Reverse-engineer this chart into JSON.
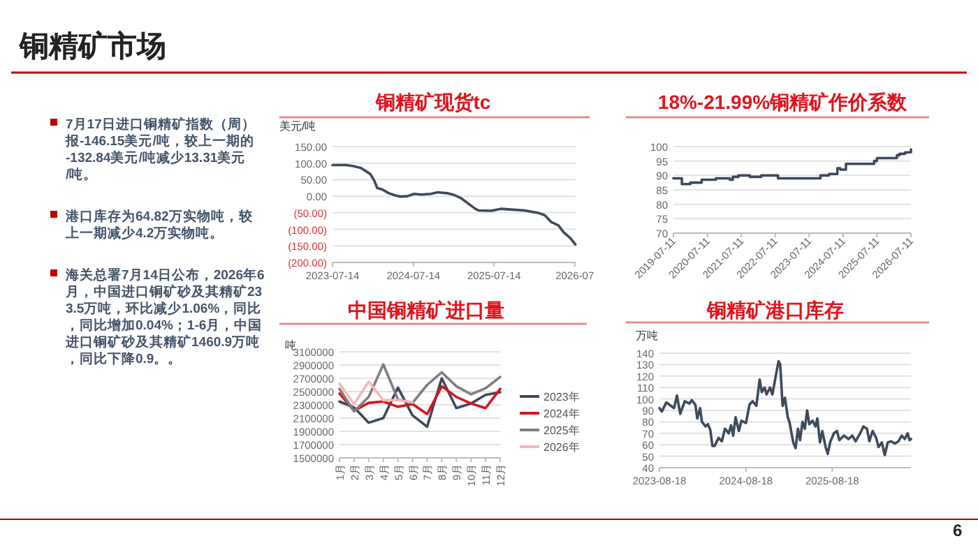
{
  "chart_data": [
    {
      "type": "other",
      "title": "铜精矿市场",
      "annotations": [
        "7月17日进口铜精矿指数（周）报-146.15美元/吨，较上一期的-132.84美元/吨减少13.31美元/吨。",
        "港口库存为64.82万实物吨，较上一期减少4.2万实物吨。",
        "海关总署7月14日公布，2026年6月，中国进口铜矿砂及其精矿233.5万吨，环比减少1.06%，同比，同比增加0.04%；1-6月，中国进口铜矿砂及其精矿1460.9万吨，同比下降0.9。。",
        "6"
      ]
    },
    {
      "type": "line",
      "title": "铜精矿现货tc",
      "ylabel": "美元/吨",
      "grid": "y",
      "xlim": [
        "2023-07-14",
        "2026-07-18"
      ],
      "xticks": [
        {
          "value": "2023-07-14",
          "label": "2023-07-14"
        },
        {
          "value": "2024-07-14",
          "label": "2024-07-14"
        },
        {
          "value": "2025-07-14",
          "label": "2025-07-14"
        },
        {
          "value": "2026-07-14",
          "label": "2026-07"
        }
      ],
      "ylim": [
        -200,
        150
      ],
      "yticks": [
        {
          "value": 150,
          "label": "150.00"
        },
        {
          "value": 100,
          "label": "100.00"
        },
        {
          "value": 50,
          "label": "50.00"
        },
        {
          "value": 0,
          "label": "0.00"
        },
        {
          "value": -50,
          "label": "(50.00)"
        },
        {
          "value": -100,
          "label": "(100.00)"
        },
        {
          "value": -150,
          "label": "(150.00)"
        },
        {
          "value": -200,
          "label": "(200.00)"
        }
      ],
      "series": [
        {
          "color": "#3c4a5c",
          "x": [
            "2023-07-14",
            "2023-09-14",
            "2023-10-17",
            "2023-11-20",
            "2024-01-01",
            "2024-01-20",
            "2024-02-01",
            "2024-02-22",
            "2024-03-25",
            "2024-04-26",
            "2024-05-17",
            "2024-06-17",
            "2024-07-17",
            "2024-08-20",
            "2024-10-01",
            "2024-11-01",
            "2024-12-14",
            "2025-01-14",
            "2025-02-17",
            "2025-03-17",
            "2025-04-20",
            "2025-05-05",
            "2025-07-01",
            "2025-08-14",
            "2025-09-25",
            "2025-11-28",
            "2026-01-28",
            "2026-02-28",
            "2026-03-30",
            "2026-05-01",
            "2026-05-25",
            "2026-06-25",
            "2026-07-17"
          ],
          "values": [
            94,
            94,
            91,
            85,
            67,
            46,
            25,
            21,
            9,
            2,
            -1,
            0,
            7,
            5,
            7,
            12,
            9,
            4,
            -7,
            -21,
            -38,
            -43,
            -44,
            -38,
            -40,
            -43,
            -50,
            -57,
            -78,
            -88,
            -109,
            -127,
            -146
          ]
        }
      ]
    },
    {
      "type": "step",
      "title": "18%-21.99%铜精矿作价系数",
      "grid": "y",
      "xlim": [
        "2019-07-11",
        "2026-07-11"
      ],
      "xticks": [
        {
          "value": "2019-07-11",
          "label": "2019-07-11"
        },
        {
          "value": "2020-07-11",
          "label": "2020-07-11"
        },
        {
          "value": "2021-07-11",
          "label": "2021-07-11"
        },
        {
          "value": "2022-07-11",
          "label": "2022-07-11"
        },
        {
          "value": "2023-07-11",
          "label": "2023-07-11"
        },
        {
          "value": "2024-07-11",
          "label": "2024-07-11"
        },
        {
          "value": "2025-07-11",
          "label": "2025-07-11"
        },
        {
          "value": "2026-07-11",
          "label": "2026-07-11"
        }
      ],
      "ylim": [
        70,
        100
      ],
      "yticks": [
        70,
        75,
        80,
        85,
        90,
        95,
        100
      ],
      "series": [
        {
          "color": "#3c4a5c",
          "x": [
            "2019-07-11",
            "2019-09-10",
            "2019-10-10",
            "2020-01-10",
            "2020-05-10",
            "2020-10-10",
            "2021-03-10",
            "2021-04-10",
            "2021-06-10",
            "2021-10-10",
            "2022-02-10",
            "2022-08-10",
            "2023-11-10",
            "2024-02-10",
            "2024-05-10",
            "2024-06-10",
            "2024-08-10",
            "2025-06-10",
            "2025-07-10",
            "2026-02-10",
            "2026-03-10",
            "2026-05-10",
            "2026-07-11"
          ],
          "values": [
            89,
            89,
            87,
            87.5,
            88.5,
            89,
            88.5,
            89.5,
            90,
            89.5,
            90,
            89,
            90,
            90.5,
            92.5,
            92,
            94,
            95,
            96,
            97,
            97.5,
            98,
            99
          ]
        }
      ]
    },
    {
      "type": "line",
      "title": "中国铜精矿进口量",
      "ylabel": "吨",
      "grid": "y",
      "legend": "right",
      "categories": [
        "1月",
        "2月",
        "3月",
        "4月",
        "5月",
        "6月",
        "7月",
        "8月",
        "9月",
        "10月",
        "11月",
        "12月"
      ],
      "ylim": [
        1500000,
        3100000
      ],
      "yticks": [
        1500000,
        1700000,
        1900000,
        2100000,
        2300000,
        2500000,
        2700000,
        2900000,
        3100000
      ],
      "series": [
        {
          "name": "2023年",
          "color": "#3b4a5e",
          "values": [
            2350000,
            2260000,
            2030000,
            2100000,
            2560000,
            2140000,
            1970000,
            2700000,
            2250000,
            2320000,
            2450000,
            2490000
          ]
        },
        {
          "name": "2024年",
          "color": "#d7141d",
          "values": [
            2470000,
            2210000,
            2330000,
            2350000,
            2270000,
            2310000,
            2160000,
            2580000,
            2420000,
            2320000,
            2250000,
            2540000
          ]
        },
        {
          "name": "2025年",
          "color": "#7f7f7f",
          "values": [
            2540000,
            2200000,
            2420000,
            2910000,
            2380000,
            2330000,
            2600000,
            2790000,
            2580000,
            2460000,
            2550000,
            2720000
          ]
        },
        {
          "name": "2026年",
          "color": "#f6b8b8",
          "values": [
            2620000,
            2310000,
            2650000,
            2370000,
            2370000,
            2340000,
            null,
            null,
            null,
            null,
            null,
            null
          ]
        }
      ]
    },
    {
      "type": "line",
      "title": "铜精矿港口库存",
      "ylabel": "万吨",
      "grid": "y",
      "xlim": [
        "2023-08-18",
        "2026-07-17"
      ],
      "xticks": [
        {
          "value": "2023-08-18",
          "label": "2023-08-18"
        },
        {
          "value": "2024-08-18",
          "label": "2024-08-18"
        },
        {
          "value": "2025-08-18",
          "label": "2025-08-18"
        }
      ],
      "ylim": [
        40,
        140
      ],
      "yticks": [
        40,
        50,
        60,
        70,
        80,
        90,
        100,
        110,
        120,
        130,
        140
      ],
      "series": [
        {
          "color": "#3c4a5c",
          "x": [
            "2023-08-18",
            "2023-08-28",
            "2023-09-16",
            "2023-10-06",
            "2023-10-19",
            "2023-10-31",
            "2023-11-14",
            "2023-12-03",
            "2023-12-23",
            "2024-01-02",
            "2024-01-17",
            "2024-01-25",
            "2024-02-06",
            "2024-02-14",
            "2024-02-29",
            "2024-03-10",
            "2024-03-20",
            "2024-03-29",
            "2024-04-08",
            "2024-04-24",
            "2024-05-08",
            "2024-05-21",
            "2024-06-06",
            "2024-06-16",
            "2024-06-25",
            "2024-07-05",
            "2024-07-19",
            "2024-07-30",
            "2024-08-18",
            "2024-09-02",
            "2024-09-15",
            "2024-10-01",
            "2024-10-15",
            "2024-10-24",
            "2024-11-05",
            "2024-11-13",
            "2024-11-28",
            "2024-12-08",
            "2024-12-22",
            "2025-01-03",
            "2025-01-10",
            "2025-01-20",
            "2025-01-30",
            "2025-02-11",
            "2025-02-18",
            "2025-03-06",
            "2025-03-16",
            "2025-03-26",
            "2025-04-04",
            "2025-04-14",
            "2025-04-24",
            "2025-05-04",
            "2025-05-13",
            "2025-05-27",
            "2025-06-08",
            "2025-06-16",
            "2025-06-27",
            "2025-07-07",
            "2025-07-21",
            "2025-07-30",
            "2025-08-09",
            "2025-08-25",
            "2025-09-07",
            "2025-09-17",
            "2025-10-07",
            "2025-10-26",
            "2025-11-11",
            "2025-11-25",
            "2025-12-14",
            "2025-12-28",
            "2026-01-12",
            "2026-01-22",
            "2026-02-05",
            "2026-02-20",
            "2026-03-02",
            "2026-03-16",
            "2026-03-28",
            "2026-04-10",
            "2026-04-24",
            "2026-05-10",
            "2026-05-25",
            "2026-06-08",
            "2026-06-21",
            "2026-07-03",
            "2026-07-11",
            "2026-07-17"
          ],
          "values": [
            92,
            89,
            97,
            94,
            92,
            103,
            87,
            98,
            96,
            99,
            95,
            83,
            92,
            80,
            76,
            78,
            73,
            59,
            59,
            66,
            63,
            74,
            70,
            77,
            68,
            84,
            72,
            81,
            79,
            95,
            98,
            94,
            117,
            106,
            110,
            104,
            110,
            104,
            120,
            133,
            130,
            94,
            101,
            84,
            80,
            62,
            57,
            74,
            64,
            80,
            74,
            90,
            78,
            81,
            76,
            83,
            62,
            72,
            58,
            52,
            62,
            70,
            72,
            64,
            68,
            65,
            68,
            63,
            70,
            76,
            74,
            63,
            72,
            66,
            58,
            62,
            51,
            62,
            63,
            61,
            63,
            68,
            65,
            70,
            64,
            65
          ]
        }
      ]
    }
  ]
}
